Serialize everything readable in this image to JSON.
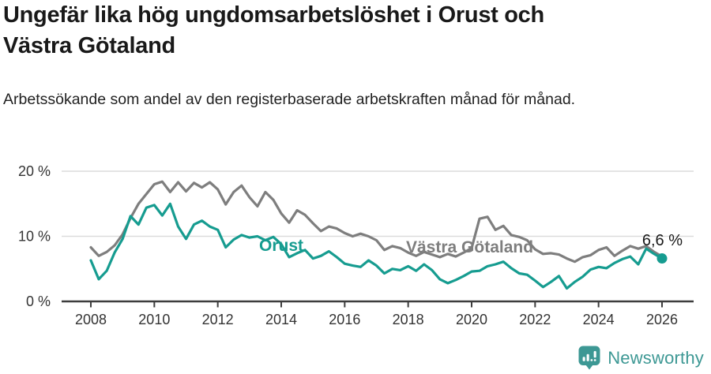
{
  "header": {
    "title": "Ungefär lika hög ungdomsarbetslöshet i Orust och\nVästra Götaland",
    "subtitle": "Arbetssökande som andel av den registerbaserade arbetskraften månad för månad."
  },
  "chart_data": {
    "type": "line",
    "title": "Ungefär lika hög ungdomsarbetslöshet i Orust och Västra Götaland",
    "subtitle": "Arbetssökande som andel av den registerbaserade arbetskraften månad för månad.",
    "unit": "%",
    "grid": "horizontal",
    "legend_position": "inline-labels",
    "x_start": 2008,
    "x_step": 0.25,
    "xlim": [
      2007.1,
      2027
    ],
    "ylim": [
      0,
      22
    ],
    "x_ticks": [
      {
        "x": 2008,
        "label": "2008"
      },
      {
        "x": 2010,
        "label": "2010"
      },
      {
        "x": 2012,
        "label": "2012"
      },
      {
        "x": 2014,
        "label": "2014"
      },
      {
        "x": 2016,
        "label": "2016"
      },
      {
        "x": 2018,
        "label": "2018"
      },
      {
        "x": 2020,
        "label": "2020"
      },
      {
        "x": 2022,
        "label": "2022"
      },
      {
        "x": 2024,
        "label": "2024"
      },
      {
        "x": 2026,
        "label": "2026"
      }
    ],
    "y_ticks": [
      {
        "value": 0,
        "label": "0 %"
      },
      {
        "value": 10,
        "label": "10 %"
      },
      {
        "value": 20,
        "label": "20 %"
      }
    ],
    "series": [
      {
        "name": "Västra Götaland",
        "label": "Västra Götaland",
        "color": "#7E7E7E",
        "values": [
          8.3,
          7.0,
          7.6,
          8.6,
          10.3,
          12.8,
          15.0,
          16.5,
          18.0,
          18.4,
          16.8,
          18.3,
          16.9,
          18.2,
          17.5,
          18.3,
          17.2,
          14.9,
          16.8,
          17.8,
          16.0,
          14.6,
          16.8,
          15.6,
          13.5,
          12.1,
          14.0,
          13.3,
          12.0,
          10.8,
          11.5,
          11.2,
          10.5,
          10.0,
          10.4,
          10.0,
          9.4,
          7.9,
          8.5,
          8.2,
          7.5,
          7.0,
          7.6,
          7.2,
          6.8,
          7.3,
          6.9,
          7.5,
          8.2,
          12.7,
          13.0,
          11.0,
          11.6,
          10.2,
          9.9,
          9.4,
          8.0,
          7.3,
          7.4,
          7.2,
          6.6,
          6.1,
          6.8,
          7.1,
          7.9,
          8.3,
          7.0,
          7.8,
          8.5,
          8.1,
          8.5,
          7.6,
          6.9
        ]
      },
      {
        "name": "Orust",
        "label": "Orust",
        "color": "#169C90",
        "end_dot": true,
        "end_annotation": "6,6 %",
        "values": [
          6.3,
          3.4,
          4.7,
          7.5,
          9.6,
          13.1,
          11.8,
          14.4,
          14.8,
          13.2,
          15.0,
          11.5,
          9.6,
          11.8,
          12.4,
          11.5,
          11.0,
          8.3,
          9.5,
          10.2,
          9.8,
          10.0,
          9.4,
          9.9,
          8.8,
          6.8,
          7.4,
          7.9,
          6.6,
          7.0,
          7.7,
          6.8,
          5.8,
          5.5,
          5.3,
          6.3,
          5.5,
          4.3,
          5.0,
          4.8,
          5.4,
          4.7,
          5.7,
          4.8,
          3.4,
          2.8,
          3.3,
          3.9,
          4.6,
          4.7,
          5.4,
          5.7,
          6.1,
          5.1,
          4.3,
          4.1,
          3.2,
          2.2,
          3.0,
          3.9,
          2.0,
          3.0,
          3.8,
          4.9,
          5.3,
          5.1,
          5.9,
          6.5,
          6.9,
          5.7,
          8.1,
          7.3,
          6.6
        ]
      }
    ],
    "colors": {
      "axis": "#3D3D3D",
      "gridline": "#DCDCDC",
      "tick_label": "#333333",
      "annotation": "#191919"
    }
  },
  "footer": {
    "brand": "Newsworthy",
    "brand_color": "#3D9894",
    "logo_icon": "speech-bubble-bar-chart"
  }
}
